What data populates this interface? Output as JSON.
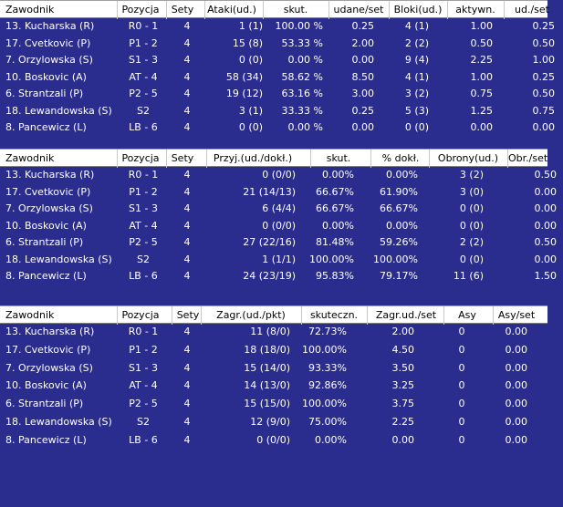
{
  "attack": {
    "headers": [
      "Zawodnik",
      "Pozycja",
      "Sety",
      "Ataki(ud.)",
      "skut.",
      "udane/set",
      "Bloki(ud.)",
      "aktywn.",
      "ud./set"
    ],
    "rows": [
      [
        "13. Kucharska (R)",
        "R0 - 1",
        "4",
        "1 (1)",
        "100.00 %",
        "0.25",
        "4 (1)",
        "1.00",
        "0.25"
      ],
      [
        "17. Cvetkovic (P)",
        "P1 - 2",
        "4",
        "15 (8)",
        "53.33 %",
        "2.00",
        "2 (2)",
        "0.50",
        "0.50"
      ],
      [
        "7. Orzylowska (S)",
        "S1 - 3",
        "4",
        "0 (0)",
        "0.00 %",
        "0.00",
        "9 (4)",
        "2.25",
        "1.00"
      ],
      [
        "10. Boskovic (A)",
        "AT - 4",
        "4",
        "58 (34)",
        "58.62 %",
        "8.50",
        "4 (1)",
        "1.00",
        "0.25"
      ],
      [
        "6. Strantzali (P)",
        "P2 - 5",
        "4",
        "19 (12)",
        "63.16 %",
        "3.00",
        "3 (2)",
        "0.75",
        "0.50"
      ],
      [
        "18. Lewandowska (S)",
        "S2",
        "4",
        "3 (1)",
        "33.33 %",
        "0.25",
        "5 (3)",
        "1.25",
        "0.75"
      ],
      [
        "8. Pancewicz (L)",
        "LB - 6",
        "4",
        "0 (0)",
        "0.00 %",
        "0.00",
        "0 (0)",
        "0.00",
        "0.00"
      ]
    ]
  },
  "reception": {
    "headers": [
      "Zawodnik",
      "Pozycja",
      "Sety",
      "Przyj.(ud./dokł.)",
      "skut.",
      "% dokł.",
      "Obrony(ud.)",
      "Obr./set"
    ],
    "rows": [
      [
        "13. Kucharska (R)",
        "R0 - 1",
        "4",
        "0 (0/0)",
        "0.00%",
        "0.00%",
        "3 (2)",
        "0.50"
      ],
      [
        "17. Cvetkovic (P)",
        "P1 - 2",
        "4",
        "21 (14/13)",
        "66.67%",
        "61.90%",
        "3 (0)",
        "0.00"
      ],
      [
        "7. Orzylowska (S)",
        "S1 - 3",
        "4",
        "6 (4/4)",
        "66.67%",
        "66.67%",
        "0 (0)",
        "0.00"
      ],
      [
        "10. Boskovic (A)",
        "AT - 4",
        "4",
        "0 (0/0)",
        "0.00%",
        "0.00%",
        "0 (0)",
        "0.00"
      ],
      [
        "6. Strantzali (P)",
        "P2 - 5",
        "4",
        "27 (22/16)",
        "81.48%",
        "59.26%",
        "2 (2)",
        "0.50"
      ],
      [
        "18. Lewandowska (S)",
        "S2",
        "4",
        "1 (1/1)",
        "100.00%",
        "100.00%",
        "0 (0)",
        "0.00"
      ],
      [
        "8. Pancewicz (L)",
        "LB - 6",
        "4",
        "24 (23/19)",
        "95.83%",
        "79.17%",
        "11 (6)",
        "1.50"
      ]
    ]
  },
  "serve": {
    "headers": [
      "Zawodnik",
      "Pozycja",
      "Sety",
      "Zagr.(ud./pkt)",
      "skuteczn.",
      "Zagr.ud./set",
      "Asy",
      "Asy/set"
    ],
    "rows": [
      [
        "13. Kucharska (R)",
        "R0 - 1",
        "4",
        "11 (8/0)",
        "72.73%",
        "2.00",
        "0",
        "0.00"
      ],
      [
        "17. Cvetkovic (P)",
        "P1 - 2",
        "4",
        "18 (18/0)",
        "100.00%",
        "4.50",
        "0",
        "0.00"
      ],
      [
        "7. Orzylowska (S)",
        "S1 - 3",
        "4",
        "15 (14/0)",
        "93.33%",
        "3.50",
        "0",
        "0.00"
      ],
      [
        "10. Boskovic (A)",
        "AT - 4",
        "4",
        "14 (13/0)",
        "92.86%",
        "3.25",
        "0",
        "0.00"
      ],
      [
        "6. Strantzali (P)",
        "P2 - 5",
        "4",
        "15 (15/0)",
        "100.00%",
        "3.75",
        "0",
        "0.00"
      ],
      [
        "18. Lewandowska (S)",
        "S2",
        "4",
        "12 (9/0)",
        "75.00%",
        "2.25",
        "0",
        "0.00"
      ],
      [
        "8. Pancewicz (L)",
        "LB - 6",
        "4",
        "0 (0/0)",
        "0.00%",
        "0.00",
        "0",
        "0.00"
      ]
    ]
  }
}
